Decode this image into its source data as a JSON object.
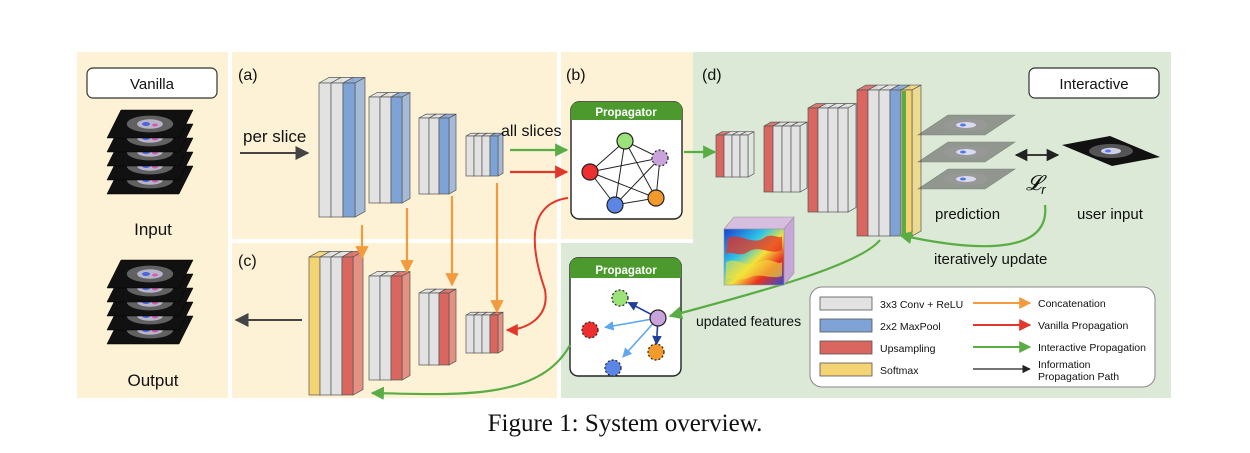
{
  "labels": {
    "vanilla": "Vanilla",
    "interactive": "Interactive",
    "input": "Input",
    "output": "Output",
    "panel_a": "(a)",
    "panel_b": "(b)",
    "panel_c": "(c)",
    "panel_d": "(d)",
    "per_slice": "per slice",
    "all_slices": "all slices",
    "propagator_top": "Propagator",
    "propagator_bottom": "Propagator",
    "prediction": "prediction",
    "user_input": "user input",
    "iteratively_update": "iteratively update",
    "updated_features": "updated features",
    "loss_symbol": "𝓛",
    "loss_subscript": "r"
  },
  "legend": {
    "blocks": [
      {
        "label": "3x3 Conv + ReLU",
        "color": "#e2e2e2"
      },
      {
        "label": "2x2 MaxPool",
        "color": "#7fa3d6"
      },
      {
        "label": "Upsampling",
        "color": "#d9665f"
      },
      {
        "label": "Softmax",
        "color": "#f3d372"
      }
    ],
    "arrows": [
      {
        "label": "Concatenation",
        "color": "#f19a3e"
      },
      {
        "label": "Vanilla Propagation",
        "color": "#e2372b"
      },
      {
        "label": "Interactive Propagation",
        "color": "#5aac44"
      },
      {
        "label": "Information Propagation Path",
        "label_line2": "Propagation Path",
        "label_line1": "Information",
        "color": "#222222"
      }
    ]
  },
  "colors": {
    "panel_vanilla": "#fdf2d6",
    "panel_interactive": "#dbe9d6",
    "conv": "#e2e2e2",
    "maxpool": "#7fa3d6",
    "upsampling": "#d9665f",
    "softmax": "#f3d372",
    "concat_arrow": "#f19a3e",
    "vanilla_arrow": "#e2372b",
    "interactive_arrow": "#5aac44",
    "propagator_header": "#4c9a2e"
  },
  "caption": "Figure 1: System overview."
}
